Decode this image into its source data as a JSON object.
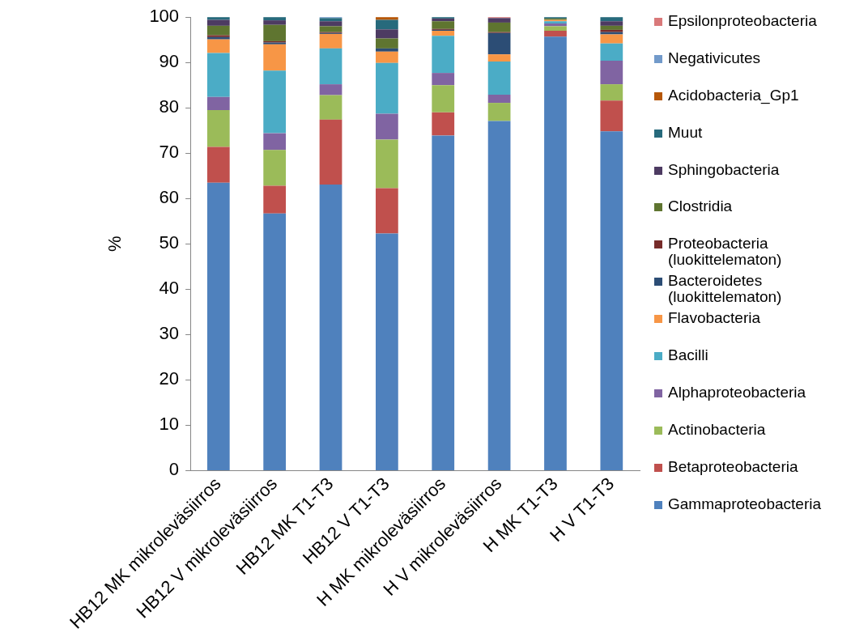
{
  "chart_data": {
    "type": "bar",
    "stacked": true,
    "ylabel": "%",
    "ylim": [
      0,
      100
    ],
    "yticks": [
      0,
      10,
      20,
      30,
      40,
      50,
      60,
      70,
      80,
      90,
      100
    ],
    "grid": false,
    "legend": "right",
    "categories": [
      "HB12 MK mikroleväsiirros",
      "HB12 V mikroleväsiirros",
      "HB12 MK T1-T3",
      "HB12 V T1-T3",
      "H MK mikroleväsiirros",
      "H V mikroleväsiirros",
      "H MK T1-T3",
      "H V T1-T3"
    ],
    "series": [
      {
        "name": "Gammaproteobacteria",
        "color": "#4f81bd",
        "values": [
          63.5,
          56.7,
          63.1,
          52.3,
          73.9,
          77.1,
          95.7,
          74.8
        ]
      },
      {
        "name": "Betaproteobacteria",
        "color": "#c0504d",
        "values": [
          7.9,
          6.1,
          14.3,
          10.0,
          5.1,
          0,
          1.3,
          6.8
        ]
      },
      {
        "name": "Actinobacteria",
        "color": "#9bbb59",
        "values": [
          8.1,
          7.9,
          5.4,
          10.7,
          6.0,
          4.0,
          1.0,
          3.6
        ]
      },
      {
        "name": "Alphaproteobacteria",
        "color": "#8064a2",
        "values": [
          2.9,
          3.7,
          2.4,
          5.7,
          2.7,
          1.8,
          0.6,
          5.2
        ]
      },
      {
        "name": "Bacilli",
        "color": "#4bacc6",
        "values": [
          9.7,
          13.8,
          7.9,
          11.2,
          8.2,
          7.3,
          0.5,
          3.8
        ]
      },
      {
        "name": "Flavobacteria",
        "color": "#f79646",
        "values": [
          3.0,
          5.8,
          3.2,
          2.5,
          1.1,
          1.6,
          0.3,
          2.0
        ]
      },
      {
        "name": "Bacteroidetes (luokittelematon)",
        "color": "#2c4d75",
        "values": [
          0.5,
          0.4,
          0.2,
          0.7,
          0.2,
          4.7,
          0,
          0.5
        ]
      },
      {
        "name": "Proteobacteria (luokittelematon)",
        "color": "#772c2a",
        "values": [
          0.4,
          0.3,
          0.2,
          0,
          0.2,
          0.2,
          0,
          0.5
        ]
      },
      {
        "name": "Clostridia",
        "color": "#5f7530",
        "values": [
          2.1,
          3.6,
          1.3,
          2.2,
          1.7,
          2.1,
          0.3,
          0.9
        ]
      },
      {
        "name": "Sphingobacteria",
        "color": "#4d3b62",
        "values": [
          1.3,
          1.0,
          1.1,
          2.0,
          0.6,
          1.0,
          0,
          1.0
        ]
      },
      {
        "name": "Muut",
        "color": "#276a7c",
        "values": [
          0.6,
          0.7,
          0.7,
          2.1,
          0.3,
          0,
          0.3,
          0.9
        ]
      },
      {
        "name": "Acidobacteria_Gp1",
        "color": "#b65708",
        "values": [
          0,
          0,
          0,
          0.6,
          0,
          0,
          0,
          0
        ]
      },
      {
        "name": "Negativicutes",
        "color": "#729aca",
        "values": [
          0,
          0,
          0.2,
          0,
          0,
          0,
          0,
          0
        ]
      },
      {
        "name": "Epsilonproteobacteria",
        "color": "#d9797a",
        "values": [
          0,
          0,
          0,
          0,
          0,
          0.2,
          0,
          0
        ]
      }
    ]
  }
}
